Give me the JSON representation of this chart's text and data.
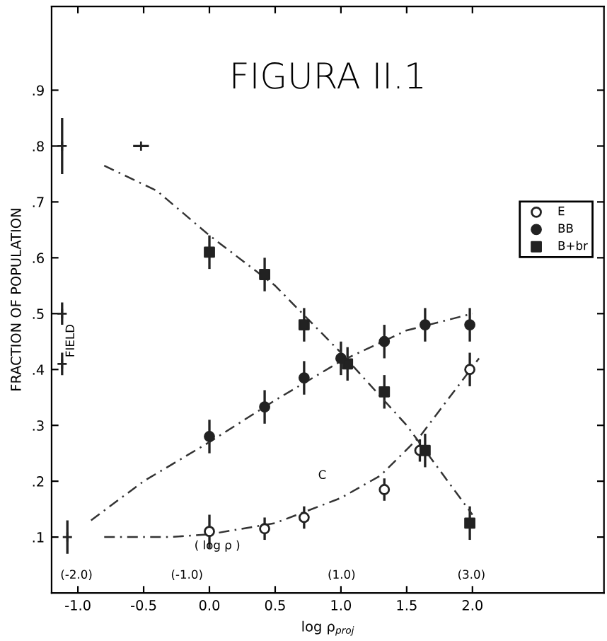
{
  "chart_data": {
    "type": "scatter",
    "title": "FIGURA II.1",
    "xlabel": "log ρ$_{proj}$",
    "ylabel": "FRACTION OF POPULATION",
    "xlim": [
      -1.2,
      3.0
    ],
    "xticks": [
      {
        "value": -1.0,
        "label": "-1.0"
      },
      {
        "value": -0.5,
        "label": "-0.5"
      },
      {
        "value": 0.0,
        "label": "0.0"
      },
      {
        "value": 0.5,
        "label": "0.5"
      },
      {
        "value": 1.0,
        "label": "1.0"
      },
      {
        "value": 1.5,
        "label": "1.5"
      },
      {
        "value": 2.0,
        "label": "2.0"
      }
    ],
    "ylim": [
      0,
      1.05
    ],
    "yticks": [
      {
        "value": 0.1,
        "label": ".1"
      },
      {
        "value": 0.2,
        "label": ".2"
      },
      {
        "value": 0.3,
        "label": ".3"
      },
      {
        "value": 0.4,
        "label": ".4"
      },
      {
        "value": 0.5,
        "label": ".5"
      },
      {
        "value": 0.6,
        "label": ".6"
      },
      {
        "value": 0.7,
        "label": ".7"
      },
      {
        "value": 0.8,
        "label": ".8"
      },
      {
        "value": 0.9,
        "label": ".9"
      }
    ],
    "grid": false,
    "legend": "right",
    "line_style": "dashed",
    "series": [
      {
        "name": "E",
        "color": "#ffffff",
        "marker": "circle",
        "x": [
          0.0,
          0.42,
          0.72,
          1.33,
          1.6,
          1.98
        ],
        "values": [
          0.11,
          0.115,
          0.135,
          0.185,
          0.255,
          0.4
        ],
        "errors": [
          0.03,
          0.02,
          0.02,
          0.02,
          0.02,
          0.03
        ]
      },
      {
        "name": "BB",
        "color": "#222222",
        "marker": "circle",
        "x": [
          0.0,
          0.42,
          0.72,
          1.0,
          1.33,
          1.64,
          1.98
        ],
        "values": [
          0.28,
          0.333,
          0.385,
          0.42,
          0.45,
          0.48,
          0.48
        ],
        "errors": [
          0.03,
          0.03,
          0.03,
          0.03,
          0.03,
          0.03,
          0.03
        ]
      },
      {
        "name": "B+br",
        "color": "#222222",
        "marker": "square",
        "x": [
          0.0,
          0.42,
          0.72,
          1.05,
          1.33,
          1.64,
          1.98
        ],
        "values": [
          0.61,
          0.57,
          0.48,
          0.41,
          0.36,
          0.255,
          0.125
        ],
        "errors": [
          0.03,
          0.03,
          0.03,
          0.03,
          0.03,
          0.03,
          0.03
        ]
      },
      {
        "color": "#222222",
        "marker": "cross",
        "x": [
          -1.12,
          -1.12,
          -1.12,
          -1.08,
          -0.52
        ],
        "values": [
          0.8,
          0.5,
          0.41,
          0.1,
          0.8
        ],
        "errors": [
          0.05,
          0.02,
          0.02,
          0.03,
          null
        ],
        "xerrors": [
          null,
          null,
          null,
          null,
          0.06
        ]
      },
      {
        "type": "line",
        "color": "#333333",
        "x": [
          -0.8,
          -0.3,
          0.0,
          0.5,
          1.0,
          1.3,
          1.6,
          2.05
        ],
        "values": [
          0.1,
          0.1,
          0.105,
          0.125,
          0.17,
          0.21,
          0.28,
          0.42
        ]
      },
      {
        "type": "line",
        "color": "#333333",
        "x": [
          -0.9,
          -0.5,
          0.0,
          0.5,
          1.0,
          1.5,
          2.0
        ],
        "values": [
          0.13,
          0.2,
          0.27,
          0.345,
          0.415,
          0.47,
          0.5
        ]
      },
      {
        "type": "line",
        "color": "#333333",
        "x": [
          -0.8,
          -0.4,
          0.0,
          0.5,
          1.0,
          1.5,
          1.75,
          2.0
        ],
        "values": [
          0.765,
          0.72,
          0.64,
          0.55,
          0.43,
          0.3,
          0.22,
          0.14
        ]
      }
    ],
    "annotations": [
      "FIELD",
      "C",
      "(-2.0)",
      "(-1.0)",
      "(1.0)",
      "(3.0)",
      "( log ρ )"
    ]
  }
}
